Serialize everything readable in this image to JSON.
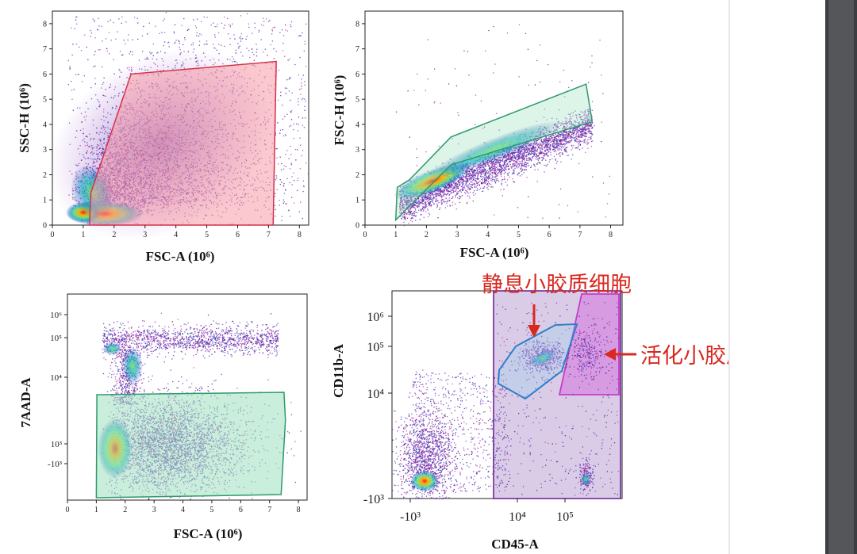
{
  "colors": {
    "annotation": "#d9281f",
    "gate_red": "#d6304a",
    "gate_red_fill": "#f59aa6",
    "gate_green": "#2e9a6a",
    "gate_green_fill": "#9fe0c0",
    "gate_blue": "#2f7fc6",
    "gate_violet": "#7a3aa0",
    "gate_violet_fill": "#b59ad0",
    "gate_magenta": "#c33fc9",
    "gate_magenta_fill": "#d68be0",
    "density_low": "#4b1a8f",
    "density_high": "#ff1a1a"
  },
  "annotations": {
    "resting_label": "静息小胶质细胞",
    "activated_label": "活化小胶质细胞"
  },
  "chart_data": [
    {
      "type": "scatter",
      "title": "",
      "xlabel": "FSC-A (10⁶)",
      "ylabel": "SSC-H (10⁶)",
      "x_ticks": [
        "0",
        "1",
        "2",
        "3",
        "4",
        "5",
        "6",
        "7",
        "8"
      ],
      "y_ticks": [
        "0",
        "1",
        "2",
        "3",
        "4",
        "5",
        "6",
        "7",
        "8"
      ],
      "xlim": [
        0,
        8.3
      ],
      "ylim": [
        0,
        8.5
      ],
      "gate": {
        "name": "",
        "color": "red",
        "vertices": [
          [
            1.2,
            0
          ],
          [
            1.25,
            1.3
          ],
          [
            2.55,
            6
          ],
          [
            7.25,
            6.5
          ],
          [
            7.15,
            0
          ]
        ]
      }
    },
    {
      "type": "scatter",
      "title": "",
      "xlabel": "FSC-A (10⁶)",
      "ylabel": "FSC-H (10⁶)",
      "x_ticks": [
        "0",
        "1",
        "2",
        "3",
        "4",
        "5",
        "6",
        "7",
        "8"
      ],
      "y_ticks": [
        "0",
        "1",
        "2",
        "3",
        "4",
        "5",
        "6",
        "7",
        "8"
      ],
      "xlim": [
        0,
        8.4
      ],
      "ylim": [
        0,
        8.5
      ],
      "gate": {
        "name": "",
        "color": "green",
        "vertices": [
          [
            1.05,
            1.5
          ],
          [
            1.45,
            1.8
          ],
          [
            2.8,
            3.5
          ],
          [
            7.2,
            5.6
          ],
          [
            7.4,
            4.1
          ],
          [
            2.8,
            2.4
          ],
          [
            1.0,
            0.2
          ]
        ]
      }
    },
    {
      "type": "scatter",
      "title": "",
      "xlabel": "FSC-A (10⁶)",
      "ylabel": "7AAD-A",
      "x_ticks": [
        "0",
        "1",
        "2",
        "3",
        "4",
        "5",
        "6",
        "7",
        "8"
      ],
      "y_ticks": [
        "10⁶",
        "10⁵",
        "10⁴",
        "10³",
        "-10³"
      ],
      "xlim": [
        0,
        8.3
      ],
      "gate": {
        "name": "",
        "color": "green",
        "description_units": "FSC-A 1.0–7.5, 7AAD-A below ~3×10³"
      }
    },
    {
      "type": "scatter",
      "title": "",
      "xlabel": "CD45-A",
      "ylabel": "CD11b-A",
      "x_ticks": [
        "-10³",
        "10⁴",
        "10⁵"
      ],
      "y_ticks": [
        "10⁶",
        "10⁵",
        "10⁴",
        "-10³"
      ],
      "gates": [
        {
          "name": "",
          "color": "violet"
        },
        {
          "name": "静息小胶质细胞",
          "color": "blue"
        },
        {
          "name": "活化小胶质细胞",
          "color": "magenta"
        }
      ]
    }
  ]
}
